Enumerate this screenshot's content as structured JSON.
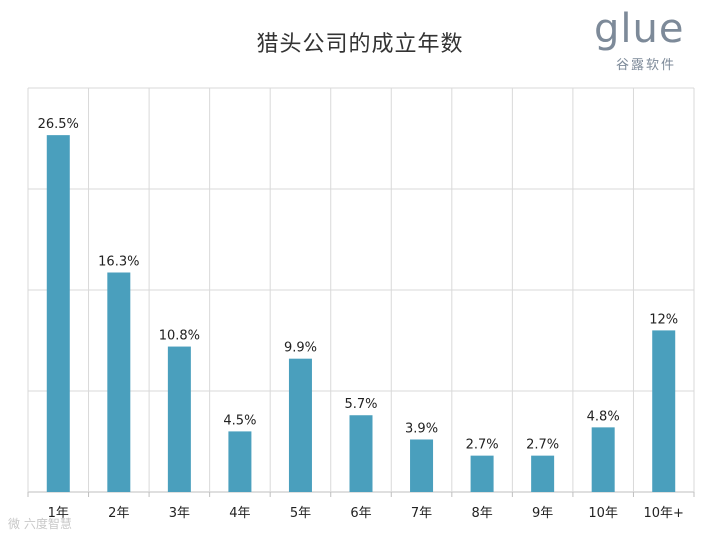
{
  "title": "猎头公司的成立年数",
  "logo": {
    "word": "glue",
    "sub": "谷露软件"
  },
  "watermark": "微 六度智慧",
  "colors": {
    "bar": "#4a9fbd",
    "grid": "#d9d9d9",
    "text": "#222222"
  },
  "chart_data": {
    "type": "bar",
    "title": "猎头公司的成立年数",
    "categories": [
      "1年",
      "2年",
      "3年",
      "4年",
      "5年",
      "6年",
      "7年",
      "8年",
      "9年",
      "10年",
      "10年+"
    ],
    "values": [
      26.5,
      16.3,
      10.8,
      4.5,
      9.9,
      5.7,
      3.9,
      2.7,
      2.7,
      4.8,
      12
    ],
    "data_labels": [
      "26.5%",
      "16.3%",
      "10.8%",
      "4.5%",
      "9.9%",
      "5.7%",
      "3.9%",
      "2.7%",
      "2.7%",
      "4.8%",
      "12%"
    ],
    "ylim": [
      0,
      30
    ],
    "grid": true,
    "legend": "none"
  }
}
